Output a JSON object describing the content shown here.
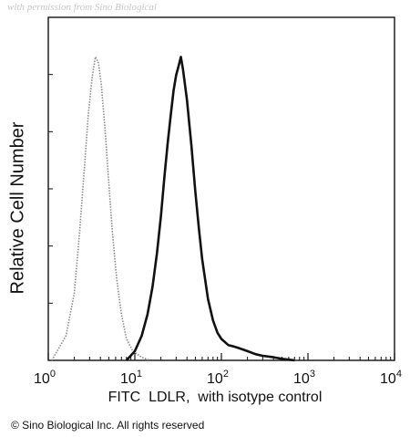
{
  "watermark": "with permission from Sino Biological",
  "copyright": "© Sino Biological Inc. All rights reserved",
  "colors": {
    "sample": "#111111",
    "isotype": "#8a8a8a"
  },
  "chart_data": {
    "type": "line",
    "xlabel": "FITC  LDLR,  with isotype control",
    "ylabel": "Relative Cell Number",
    "xscale": "log",
    "xlim": [
      1,
      10000
    ],
    "ylim": [
      0,
      1
    ],
    "grid": false,
    "legend": "none",
    "xticks": [
      {
        "value": 1,
        "base": "10",
        "exp": "0"
      },
      {
        "value": 10,
        "base": "10",
        "exp": "1"
      },
      {
        "value": 100,
        "base": "10",
        "exp": "2"
      },
      {
        "value": 1000,
        "base": "10",
        "exp": "3"
      },
      {
        "value": 10000,
        "base": "10",
        "exp": "4"
      }
    ],
    "series": [
      {
        "style": "dotted",
        "color": "#8a8a8a",
        "x": [
          1.1,
          1.6,
          2.0,
          2.3,
          2.6,
          2.9,
          3.2,
          3.5,
          3.8,
          4.1,
          4.5,
          5.0,
          5.5,
          6.2,
          7.0,
          8.0,
          9.5,
          12,
          15
        ],
        "y": [
          0.0,
          0.08,
          0.22,
          0.42,
          0.62,
          0.8,
          0.92,
          0.99,
          0.97,
          0.9,
          0.76,
          0.58,
          0.42,
          0.26,
          0.15,
          0.07,
          0.03,
          0.01,
          0.0
        ]
      },
      {
        "style": "solid",
        "color": "#111111",
        "x": [
          8,
          10,
          12,
          14,
          16,
          18,
          20,
          22,
          24,
          26,
          28,
          30,
          32,
          34,
          36,
          40,
          45,
          50,
          55,
          60,
          70,
          80,
          90,
          100,
          120,
          140,
          160,
          200,
          250,
          300,
          400,
          500,
          700
        ],
        "y": [
          0.0,
          0.03,
          0.08,
          0.15,
          0.24,
          0.35,
          0.47,
          0.6,
          0.71,
          0.8,
          0.88,
          0.93,
          0.96,
          0.99,
          0.95,
          0.85,
          0.7,
          0.55,
          0.43,
          0.33,
          0.2,
          0.13,
          0.09,
          0.07,
          0.05,
          0.045,
          0.04,
          0.03,
          0.02,
          0.015,
          0.01,
          0.005,
          0.0
        ]
      }
    ]
  }
}
